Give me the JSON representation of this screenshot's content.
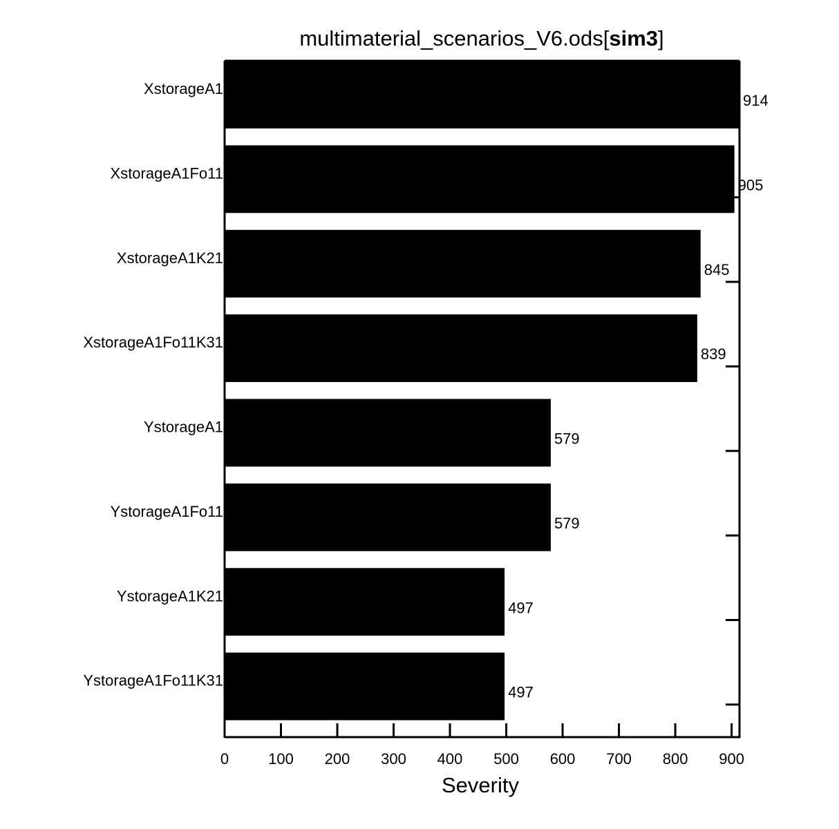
{
  "chart_data": {
    "type": "bar",
    "orientation": "horizontal",
    "title": {
      "prefix": "multimaterial_scenarios_V6.ods[",
      "bold": "sim3",
      "suffix": "]"
    },
    "xlabel": "Severity",
    "ylabel": "",
    "xlim": [
      0,
      914
    ],
    "xticks": [
      0,
      100,
      200,
      300,
      400,
      500,
      600,
      700,
      800,
      900
    ],
    "xtick_labels": [
      "0",
      "100",
      "200",
      "300",
      "400",
      "500",
      "600",
      "700",
      "800",
      "900"
    ],
    "categories": [
      "XstorageA1",
      "XstorageA1Fo11",
      "XstorageA1K21",
      "XstorageA1Fo11K31",
      "YstorageA1",
      "YstorageA1Fo11",
      "YstorageA1K21",
      "YstorageA1Fo11K31"
    ],
    "values": [
      914,
      905,
      845,
      839,
      579,
      579,
      497,
      497
    ],
    "value_labels": [
      "914",
      "905",
      "845",
      "839",
      "579",
      "579",
      "497",
      "497"
    ],
    "bar_color": "#000000",
    "grid": false,
    "legend": "none"
  }
}
